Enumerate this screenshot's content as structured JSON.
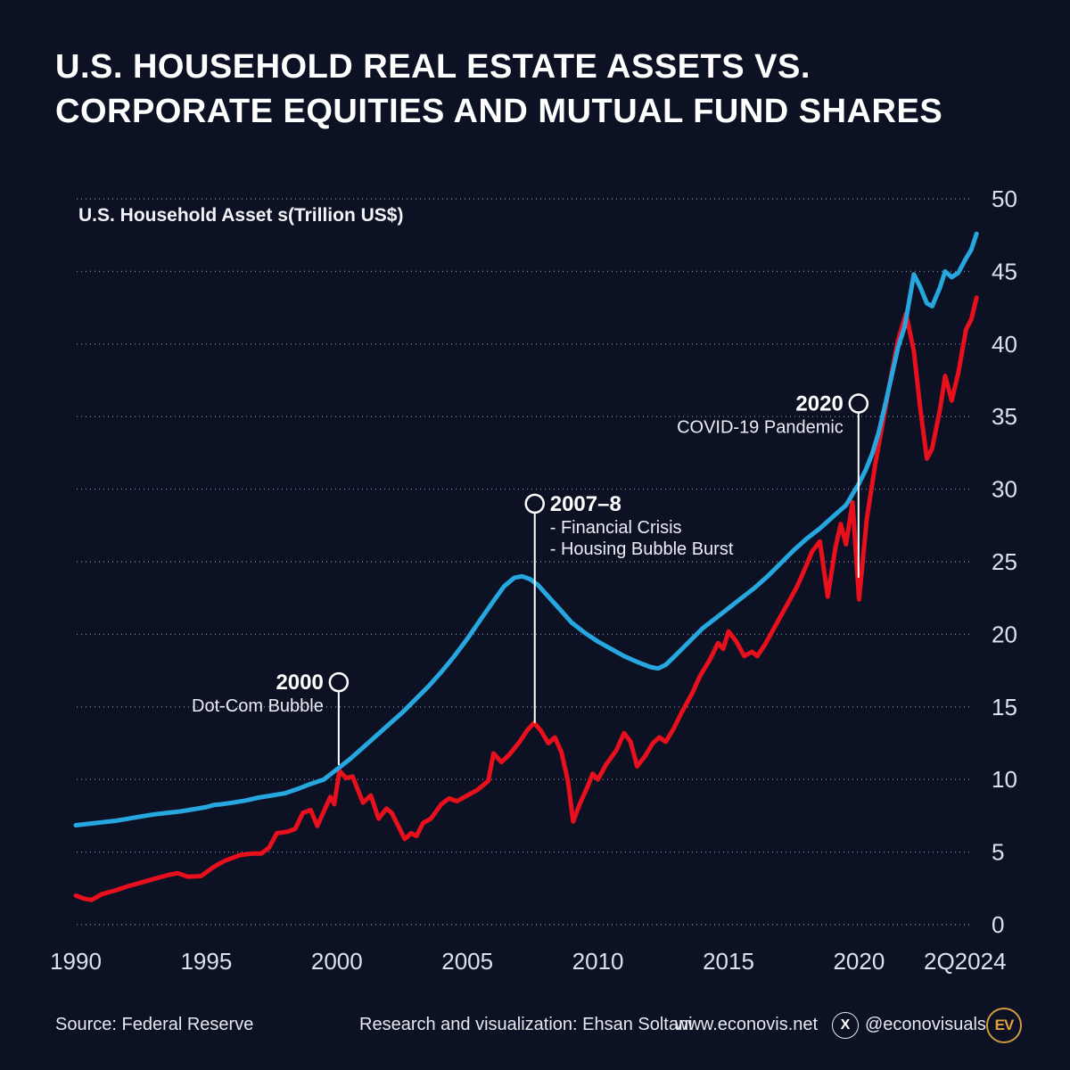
{
  "header": {
    "title_line1": "U.S. HOUSEHOLD REAL ESTATE ASSETS VS.",
    "title_line2": "CORPORATE EQUITIES AND MUTUAL FUND SHARES"
  },
  "footer": {
    "source": "Source: Federal Reserve",
    "credit": "Research and visualization: Ehsan Soltani",
    "website": "www.econovis.net",
    "x_icon": "X",
    "x_handle": "@econovisuals",
    "logo_text": "EV",
    "logo_color": "#e2a23f"
  },
  "chart_data": {
    "type": "line",
    "title": "U.S. Household Real Estate Assets vs. Corporate Equities and Mutual Fund Shares",
    "ylabel": "U.S. Household Asset s(Trillion US$)",
    "xlabel": "",
    "ylim": [
      0,
      50
    ],
    "xlim": [
      1990,
      2024.5
    ],
    "grid": "horizontal-dotted",
    "legend_position": "none",
    "y_ticks": [
      0,
      5,
      10,
      15,
      20,
      25,
      30,
      35,
      40,
      45,
      50
    ],
    "x_ticks": [
      {
        "label": "1990",
        "year": 1990
      },
      {
        "label": "1995",
        "year": 1995
      },
      {
        "label": "2000",
        "year": 2000
      },
      {
        "label": "2005",
        "year": 2005
      },
      {
        "label": "2010",
        "year": 2010
      },
      {
        "label": "2015",
        "year": 2015
      },
      {
        "label": "2020",
        "year": 2020
      },
      {
        "label": "2Q2024",
        "year": 2024.06
      }
    ],
    "series": [
      {
        "id": "corporate-equities-and-mutual-fund-shares",
        "name": "Corporate Equities and Mutual Fund Shares",
        "color": "#e8101d",
        "points": [
          [
            1990.0,
            2.0
          ],
          [
            1990.3,
            1.8
          ],
          [
            1990.6,
            1.7
          ],
          [
            1991.0,
            2.1
          ],
          [
            1991.5,
            2.35
          ],
          [
            1992.0,
            2.65
          ],
          [
            1992.5,
            2.9
          ],
          [
            1993.0,
            3.15
          ],
          [
            1993.5,
            3.4
          ],
          [
            1993.9,
            3.55
          ],
          [
            1994.3,
            3.3
          ],
          [
            1994.8,
            3.35
          ],
          [
            1995.3,
            4.0
          ],
          [
            1995.7,
            4.4
          ],
          [
            1996.3,
            4.8
          ],
          [
            1996.8,
            4.9
          ],
          [
            1997.1,
            4.9
          ],
          [
            1997.4,
            5.3
          ],
          [
            1997.7,
            6.3
          ],
          [
            1998.1,
            6.4
          ],
          [
            1998.4,
            6.6
          ],
          [
            1998.7,
            7.7
          ],
          [
            1999.0,
            7.9
          ],
          [
            1999.25,
            6.8
          ],
          [
            1999.5,
            7.8
          ],
          [
            1999.75,
            8.8
          ],
          [
            1999.9,
            8.3
          ],
          [
            2000.1,
            10.6
          ],
          [
            2000.35,
            10.1
          ],
          [
            2000.6,
            10.2
          ],
          [
            2001.0,
            8.4
          ],
          [
            2001.3,
            8.9
          ],
          [
            2001.6,
            7.3
          ],
          [
            2001.9,
            8.0
          ],
          [
            2002.1,
            7.7
          ],
          [
            2002.6,
            5.9
          ],
          [
            2002.85,
            6.3
          ],
          [
            2003.05,
            6.1
          ],
          [
            2003.3,
            7.0
          ],
          [
            2003.6,
            7.3
          ],
          [
            2004.0,
            8.3
          ],
          [
            2004.3,
            8.7
          ],
          [
            2004.6,
            8.5
          ],
          [
            2005.0,
            8.9
          ],
          [
            2005.4,
            9.3
          ],
          [
            2005.8,
            9.9
          ],
          [
            2006.0,
            11.8
          ],
          [
            2006.3,
            11.2
          ],
          [
            2006.6,
            11.7
          ],
          [
            2007.0,
            12.6
          ],
          [
            2007.3,
            13.4
          ],
          [
            2007.55,
            13.9
          ],
          [
            2007.8,
            13.4
          ],
          [
            2008.1,
            12.5
          ],
          [
            2008.35,
            12.9
          ],
          [
            2008.6,
            11.9
          ],
          [
            2008.85,
            9.9
          ],
          [
            2009.05,
            7.1
          ],
          [
            2009.3,
            8.3
          ],
          [
            2009.6,
            9.5
          ],
          [
            2009.8,
            10.4
          ],
          [
            2010.0,
            10.0
          ],
          [
            2010.3,
            11.0
          ],
          [
            2010.7,
            12.0
          ],
          [
            2011.0,
            13.2
          ],
          [
            2011.25,
            12.6
          ],
          [
            2011.5,
            10.9
          ],
          [
            2011.8,
            11.6
          ],
          [
            2012.1,
            12.5
          ],
          [
            2012.35,
            12.9
          ],
          [
            2012.6,
            12.6
          ],
          [
            2012.9,
            13.5
          ],
          [
            2013.2,
            14.6
          ],
          [
            2013.6,
            15.9
          ],
          [
            2013.9,
            17.1
          ],
          [
            2014.3,
            18.3
          ],
          [
            2014.6,
            19.4
          ],
          [
            2014.8,
            19.0
          ],
          [
            2015.0,
            20.2
          ],
          [
            2015.3,
            19.5
          ],
          [
            2015.6,
            18.5
          ],
          [
            2015.9,
            18.8
          ],
          [
            2016.1,
            18.5
          ],
          [
            2016.4,
            19.3
          ],
          [
            2016.8,
            20.6
          ],
          [
            2017.2,
            21.9
          ],
          [
            2017.6,
            23.2
          ],
          [
            2017.9,
            24.4
          ],
          [
            2018.2,
            25.7
          ],
          [
            2018.5,
            26.4
          ],
          [
            2018.8,
            22.6
          ],
          [
            2019.1,
            26.0
          ],
          [
            2019.3,
            27.6
          ],
          [
            2019.5,
            26.2
          ],
          [
            2019.75,
            29.1
          ],
          [
            2020.0,
            22.4
          ],
          [
            2020.3,
            28.0
          ],
          [
            2020.6,
            31.5
          ],
          [
            2020.9,
            34.5
          ],
          [
            2021.2,
            37.5
          ],
          [
            2021.5,
            40.3
          ],
          [
            2021.8,
            42.1
          ],
          [
            2022.1,
            39.5
          ],
          [
            2022.35,
            35.5
          ],
          [
            2022.6,
            32.1
          ],
          [
            2022.8,
            32.8
          ],
          [
            2023.1,
            35.5
          ],
          [
            2023.3,
            37.8
          ],
          [
            2023.55,
            36.1
          ],
          [
            2023.8,
            38.0
          ],
          [
            2024.1,
            41.0
          ],
          [
            2024.3,
            41.7
          ],
          [
            2024.5,
            43.2
          ]
        ]
      },
      {
        "id": "real-estate-assets",
        "name": "Real Estate Assets",
        "color": "#27a7e0",
        "points": [
          [
            1990.0,
            6.85
          ],
          [
            1990.5,
            6.95
          ],
          [
            1991.0,
            7.05
          ],
          [
            1991.5,
            7.15
          ],
          [
            1992.0,
            7.3
          ],
          [
            1992.5,
            7.45
          ],
          [
            1993.0,
            7.6
          ],
          [
            1993.5,
            7.7
          ],
          [
            1994.0,
            7.8
          ],
          [
            1994.5,
            7.95
          ],
          [
            1995.0,
            8.1
          ],
          [
            1995.3,
            8.25
          ],
          [
            1995.6,
            8.3
          ],
          [
            1996.0,
            8.4
          ],
          [
            1996.5,
            8.55
          ],
          [
            1997.0,
            8.75
          ],
          [
            1997.5,
            8.9
          ],
          [
            1998.0,
            9.05
          ],
          [
            1998.5,
            9.35
          ],
          [
            1999.0,
            9.7
          ],
          [
            1999.5,
            10.0
          ],
          [
            2000.0,
            10.7
          ],
          [
            2000.5,
            11.4
          ],
          [
            2001.0,
            12.2
          ],
          [
            2001.5,
            13.0
          ],
          [
            2002.0,
            13.8
          ],
          [
            2002.5,
            14.6
          ],
          [
            2003.0,
            15.5
          ],
          [
            2003.5,
            16.4
          ],
          [
            2004.0,
            17.4
          ],
          [
            2004.5,
            18.5
          ],
          [
            2005.0,
            19.7
          ],
          [
            2005.5,
            21.0
          ],
          [
            2006.0,
            22.3
          ],
          [
            2006.4,
            23.3
          ],
          [
            2006.8,
            23.9
          ],
          [
            2007.1,
            24.0
          ],
          [
            2007.4,
            23.8
          ],
          [
            2007.7,
            23.4
          ],
          [
            2008.0,
            22.8
          ],
          [
            2008.5,
            21.8
          ],
          [
            2009.0,
            20.8
          ],
          [
            2009.5,
            20.1
          ],
          [
            2010.0,
            19.5
          ],
          [
            2010.5,
            19.0
          ],
          [
            2011.0,
            18.5
          ],
          [
            2011.5,
            18.1
          ],
          [
            2012.0,
            17.75
          ],
          [
            2012.3,
            17.65
          ],
          [
            2012.6,
            17.9
          ],
          [
            2013.0,
            18.6
          ],
          [
            2013.5,
            19.5
          ],
          [
            2014.0,
            20.4
          ],
          [
            2014.5,
            21.1
          ],
          [
            2015.0,
            21.8
          ],
          [
            2015.5,
            22.5
          ],
          [
            2016.0,
            23.2
          ],
          [
            2016.5,
            24.0
          ],
          [
            2017.0,
            24.9
          ],
          [
            2017.5,
            25.8
          ],
          [
            2018.0,
            26.6
          ],
          [
            2018.5,
            27.3
          ],
          [
            2019.0,
            28.1
          ],
          [
            2019.5,
            28.9
          ],
          [
            2020.0,
            30.4
          ],
          [
            2020.25,
            31.3
          ],
          [
            2020.5,
            32.4
          ],
          [
            2020.75,
            33.9
          ],
          [
            2021.0,
            35.8
          ],
          [
            2021.25,
            37.8
          ],
          [
            2021.5,
            39.8
          ],
          [
            2021.75,
            41.2
          ],
          [
            2022.1,
            44.8
          ],
          [
            2022.35,
            43.9
          ],
          [
            2022.6,
            42.8
          ],
          [
            2022.8,
            42.6
          ],
          [
            2023.1,
            43.9
          ],
          [
            2023.3,
            45.0
          ],
          [
            2023.55,
            44.6
          ],
          [
            2023.8,
            44.9
          ],
          [
            2024.1,
            45.9
          ],
          [
            2024.3,
            46.5
          ],
          [
            2024.5,
            47.6
          ]
        ]
      }
    ],
    "annotations": [
      {
        "id": "dot-com-bubble",
        "year_label": "2000",
        "detail_lines": [
          "Dot-Com Bubble"
        ],
        "x_year": 2000.07,
        "circle_value": 16.7,
        "line_end_value": 11.0,
        "side": "left"
      },
      {
        "id": "financial-crisis",
        "year_label": "2007–8",
        "detail_lines": [
          "- Financial Crisis",
          "- Housing Bubble Burst"
        ],
        "x_year": 2007.58,
        "circle_value": 29.0,
        "line_end_value": 13.9,
        "side": "right"
      },
      {
        "id": "covid-19-pandemic",
        "year_label": "2020",
        "detail_lines": [
          "COVID-19 Pandemic"
        ],
        "x_year": 2019.98,
        "circle_value": 35.9,
        "line_end_value": 23.9,
        "side": "left"
      }
    ]
  }
}
